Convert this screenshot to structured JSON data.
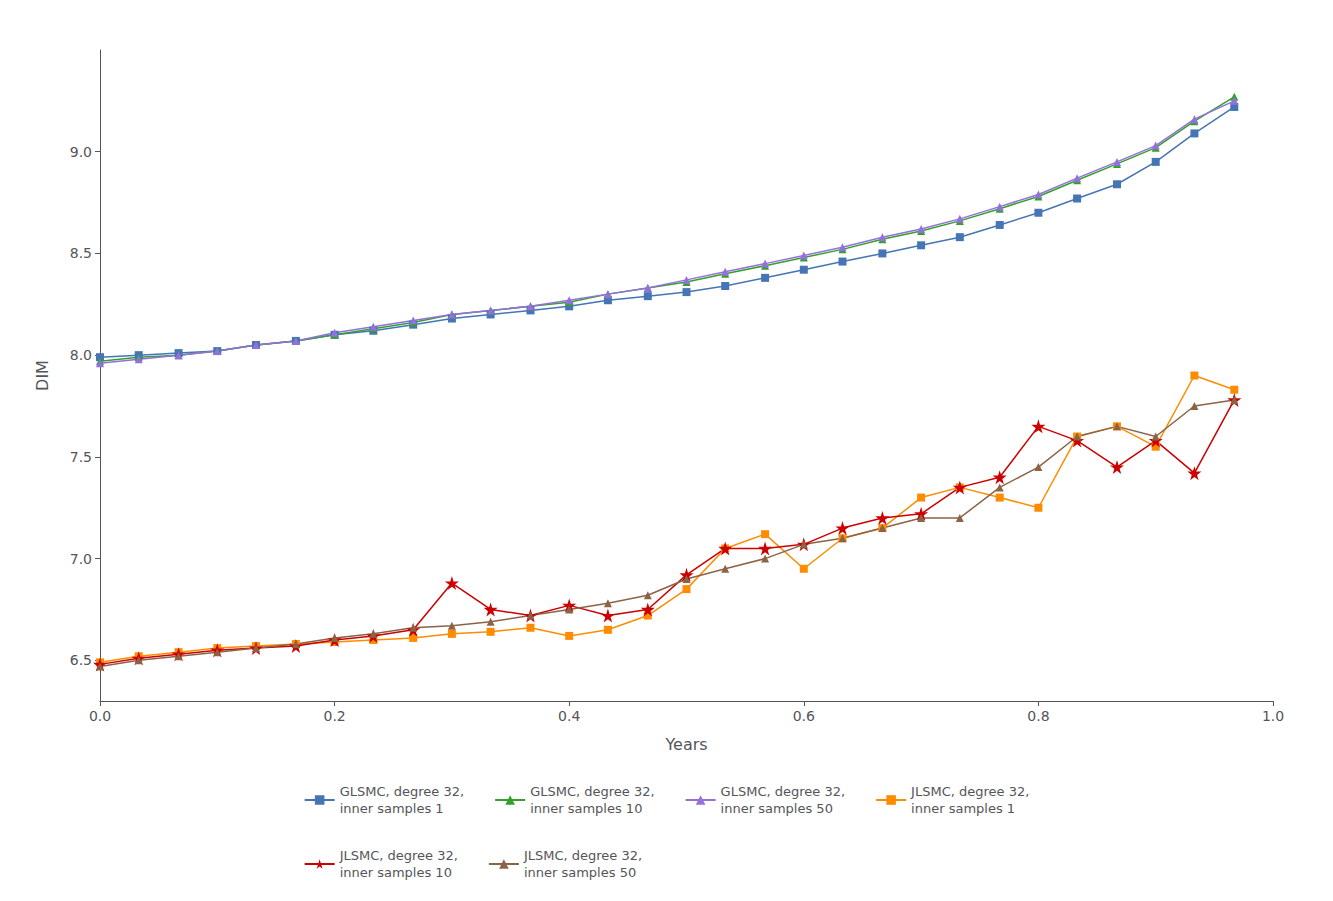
{
  "chart_data": {
    "type": "line",
    "xlabel": "Years",
    "ylabel": "DIM",
    "xlim": [
      0,
      1.0
    ],
    "ylim": [
      6.3,
      9.5
    ],
    "xticks": [
      {
        "value": 0,
        "label": "0.0"
      },
      0.2,
      0.4,
      0.6,
      0.8,
      {
        "value": 1.0,
        "label": "1.0"
      }
    ],
    "yticks": [
      6.5,
      {
        "value": 7.0,
        "label": "7.0"
      },
      7.5,
      {
        "value": 8.0,
        "label": "8.0"
      },
      8.5,
      {
        "value": 9.0,
        "label": "9.0"
      }
    ],
    "grid": false,
    "legend": "bottom",
    "x": [
      0.0,
      0.033,
      0.067,
      0.1,
      0.133,
      0.167,
      0.2,
      0.233,
      0.267,
      0.3,
      0.333,
      0.367,
      0.4,
      0.433,
      0.467,
      0.5,
      0.533,
      0.567,
      0.6,
      0.633,
      0.667,
      0.7,
      0.733,
      0.767,
      0.8,
      0.833,
      0.867,
      0.9,
      0.933,
      0.967
    ],
    "series": [
      {
        "name": "GLSMC, degree 32,\ninner samples 1",
        "color": "#4575b4",
        "marker": "square",
        "values": [
          7.99,
          8.0,
          8.01,
          8.02,
          8.05,
          8.07,
          8.1,
          8.12,
          8.15,
          8.18,
          8.2,
          8.22,
          8.24,
          8.27,
          8.29,
          8.31,
          8.34,
          8.38,
          8.42,
          8.46,
          8.5,
          8.54,
          8.58,
          8.64,
          8.7,
          8.77,
          8.84,
          8.95,
          9.09,
          9.22
        ]
      },
      {
        "name": "GLSMC, degree 32,\ninner samples 10",
        "color": "#33a02c",
        "marker": "triangle",
        "values": [
          7.97,
          7.99,
          8.0,
          8.02,
          8.05,
          8.07,
          8.1,
          8.13,
          8.16,
          8.2,
          8.22,
          8.24,
          8.26,
          8.3,
          8.33,
          8.36,
          8.4,
          8.44,
          8.48,
          8.52,
          8.57,
          8.61,
          8.66,
          8.72,
          8.78,
          8.86,
          8.94,
          9.02,
          9.15,
          9.27
        ]
      },
      {
        "name": "GLSMC, degree 32,\ninner samples 50",
        "color": "#9370db",
        "marker": "triangle",
        "values": [
          7.96,
          7.98,
          8.0,
          8.02,
          8.05,
          8.07,
          8.11,
          8.14,
          8.17,
          8.2,
          8.22,
          8.24,
          8.27,
          8.3,
          8.33,
          8.37,
          8.41,
          8.45,
          8.49,
          8.53,
          8.58,
          8.62,
          8.67,
          8.73,
          8.79,
          8.87,
          8.95,
          9.03,
          9.16,
          9.25
        ]
      },
      {
        "name": "JLSMC, degree 32,\ninner samples 1",
        "color": "#ff8c00",
        "marker": "square",
        "values": [
          6.49,
          6.52,
          6.54,
          6.56,
          6.57,
          6.58,
          6.59,
          6.6,
          6.61,
          6.63,
          6.64,
          6.66,
          6.62,
          6.65,
          6.72,
          6.85,
          7.05,
          7.12,
          6.95,
          7.1,
          7.15,
          7.3,
          7.35,
          7.3,
          7.25,
          7.6,
          7.65,
          7.55,
          7.9,
          7.83
        ]
      },
      {
        "name": "JLSMC, degree 32,\ninner samples 10",
        "color": "#cc0000",
        "marker": "star",
        "values": [
          6.48,
          6.51,
          6.53,
          6.55,
          6.56,
          6.57,
          6.6,
          6.62,
          6.65,
          6.88,
          6.75,
          6.72,
          6.77,
          6.72,
          6.75,
          6.92,
          7.05,
          7.05,
          7.07,
          7.15,
          7.2,
          7.22,
          7.35,
          7.4,
          7.65,
          7.58,
          7.45,
          7.58,
          7.42,
          7.78
        ]
      },
      {
        "name": "JLSMC, degree 32,\ninner samples 50",
        "color": "#8b6347",
        "marker": "triangle",
        "values": [
          6.47,
          6.5,
          6.52,
          6.54,
          6.56,
          6.58,
          6.61,
          6.63,
          6.66,
          6.67,
          6.69,
          6.72,
          6.75,
          6.78,
          6.82,
          6.9,
          6.95,
          7.0,
          7.07,
          7.1,
          7.15,
          7.2,
          7.2,
          7.35,
          7.45,
          7.6,
          7.65,
          7.6,
          7.75,
          7.78
        ]
      }
    ]
  }
}
